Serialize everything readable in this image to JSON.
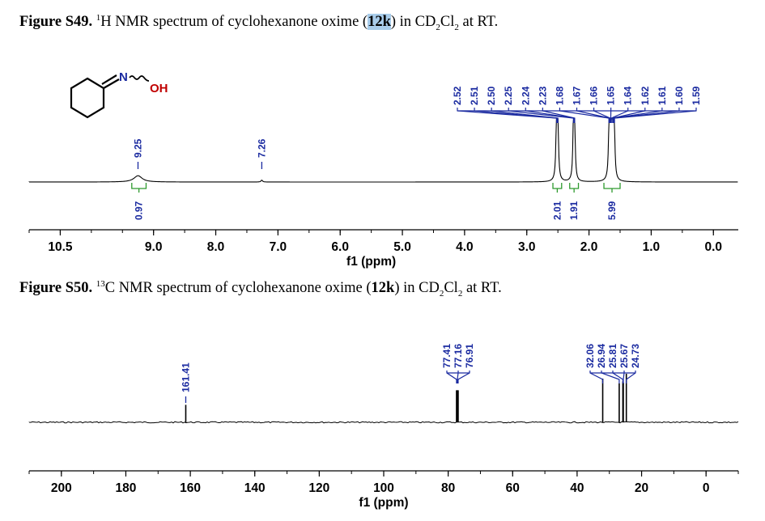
{
  "captions": {
    "s49": {
      "label": "Figure S49.",
      "sup": "1",
      "text_a": "H NMR spectrum of cyclohexanone oxime (",
      "compound": "12k",
      "text_b": ") in CD",
      "sub1": "2",
      "text_c": "Cl",
      "sub2": "2",
      "text_d": " at RT."
    },
    "s50": {
      "label": "Figure S50.",
      "sup": "13",
      "text_a": "C NMR spectrum of cyclohexanone oxime (",
      "compound": "12k",
      "text_b": ") in CD",
      "sub1": "2",
      "text_c": "Cl",
      "sub2": "2",
      "text_d": " at RT."
    }
  },
  "structure": {
    "n_label": "N",
    "oh_label": "OH",
    "bond_color": "#000000",
    "n_color": "#1a2aa0",
    "o_color": "#c00000"
  },
  "colors": {
    "peak_label": "#1a2aa0",
    "integral": "#2e9a2e",
    "spectrum": "#000000"
  },
  "chart_data": [
    {
      "type": "line",
      "title": "",
      "xlabel": "f1 (ppm)",
      "xlim": [
        11.0,
        -0.4
      ],
      "reversed_x": true,
      "xticks": [
        10.5,
        9.0,
        8.0,
        7.0,
        6.0,
        5.0,
        4.0,
        3.0,
        2.0,
        1.0,
        0.0
      ],
      "xtick_labels": [
        "10.5",
        "9.0",
        "8.0",
        "7.0",
        "6.0",
        "5.0",
        "4.0",
        "3.0",
        "2.0",
        "1.0",
        "0.0"
      ],
      "peaks": [
        {
          "ppm": 9.25,
          "height": 0.1,
          "width": 0.08
        },
        {
          "ppm": 7.26,
          "height": 0.03,
          "width": 0.015
        },
        {
          "ppm": 2.52,
          "height": 0.85,
          "width": 0.012
        },
        {
          "ppm": 2.51,
          "height": 0.78,
          "width": 0.012
        },
        {
          "ppm": 2.5,
          "height": 0.55,
          "width": 0.012
        },
        {
          "ppm": 2.25,
          "height": 0.62,
          "width": 0.012
        },
        {
          "ppm": 2.24,
          "height": 0.7,
          "width": 0.012
        },
        {
          "ppm": 2.23,
          "height": 0.52,
          "width": 0.012
        },
        {
          "ppm": 1.68,
          "height": 0.42,
          "width": 0.012
        },
        {
          "ppm": 1.67,
          "height": 0.45,
          "width": 0.012
        },
        {
          "ppm": 1.66,
          "height": 0.47,
          "width": 0.012
        },
        {
          "ppm": 1.65,
          "height": 0.47,
          "width": 0.012
        },
        {
          "ppm": 1.64,
          "height": 0.46,
          "width": 0.012
        },
        {
          "ppm": 1.62,
          "height": 0.45,
          "width": 0.012
        },
        {
          "ppm": 1.61,
          "height": 0.44,
          "width": 0.012
        },
        {
          "ppm": 1.6,
          "height": 0.42,
          "width": 0.012
        },
        {
          "ppm": 1.59,
          "height": 0.4,
          "width": 0.012
        }
      ],
      "single_labels": [
        {
          "ppm": 9.25,
          "label": "9.25"
        },
        {
          "ppm": 7.26,
          "label": "7.26"
        }
      ],
      "group_labels": [
        "2.52",
        "2.51",
        "2.50",
        "2.25",
        "2.24",
        "2.23",
        "1.68",
        "1.67",
        "1.66",
        "1.65",
        "1.64",
        "1.62",
        "1.61",
        "1.60",
        "1.59"
      ],
      "group_label_ppm": [
        2.52,
        2.51,
        2.5,
        2.25,
        2.24,
        2.23,
        1.68,
        1.67,
        1.66,
        1.65,
        1.64,
        1.62,
        1.61,
        1.6,
        1.59
      ],
      "integrals": [
        {
          "from": 9.35,
          "to": 9.12,
          "value": "0.97"
        },
        {
          "from": 2.58,
          "to": 2.44,
          "value": "2.01"
        },
        {
          "from": 2.31,
          "to": 2.17,
          "value": "1.91"
        },
        {
          "from": 1.76,
          "to": 1.5,
          "value": "5.99"
        }
      ]
    },
    {
      "type": "line",
      "title": "",
      "xlabel": "f1 (ppm)",
      "xlim": [
        210,
        -10
      ],
      "reversed_x": true,
      "xticks": [
        200,
        180,
        160,
        140,
        120,
        100,
        80,
        60,
        40,
        20,
        0
      ],
      "xtick_labels": [
        "200",
        "180",
        "160",
        "140",
        "120",
        "100",
        "80",
        "60",
        "40",
        "20",
        "0"
      ],
      "peaks": [
        {
          "ppm": 161.41,
          "height": 0.18
        },
        {
          "ppm": 77.41,
          "height": 0.33
        },
        {
          "ppm": 77.16,
          "height": 0.33
        },
        {
          "ppm": 76.91,
          "height": 0.33
        },
        {
          "ppm": 32.06,
          "height": 0.45
        },
        {
          "ppm": 26.94,
          "height": 0.4
        },
        {
          "ppm": 25.81,
          "height": 0.42
        },
        {
          "ppm": 25.67,
          "height": 0.41
        },
        {
          "ppm": 24.73,
          "height": 0.5
        }
      ],
      "single_labels": [
        {
          "ppm": 161.41,
          "label": "161.41"
        }
      ],
      "groups": [
        {
          "labels": [
            "77.41",
            "77.16",
            "76.91"
          ],
          "ppm": [
            77.41,
            77.16,
            76.91
          ]
        },
        {
          "labels": [
            "32.06",
            "26.94",
            "25.81",
            "25.67",
            "24.73"
          ],
          "ppm": [
            32.06,
            26.94,
            25.81,
            25.67,
            24.73
          ]
        }
      ]
    }
  ]
}
